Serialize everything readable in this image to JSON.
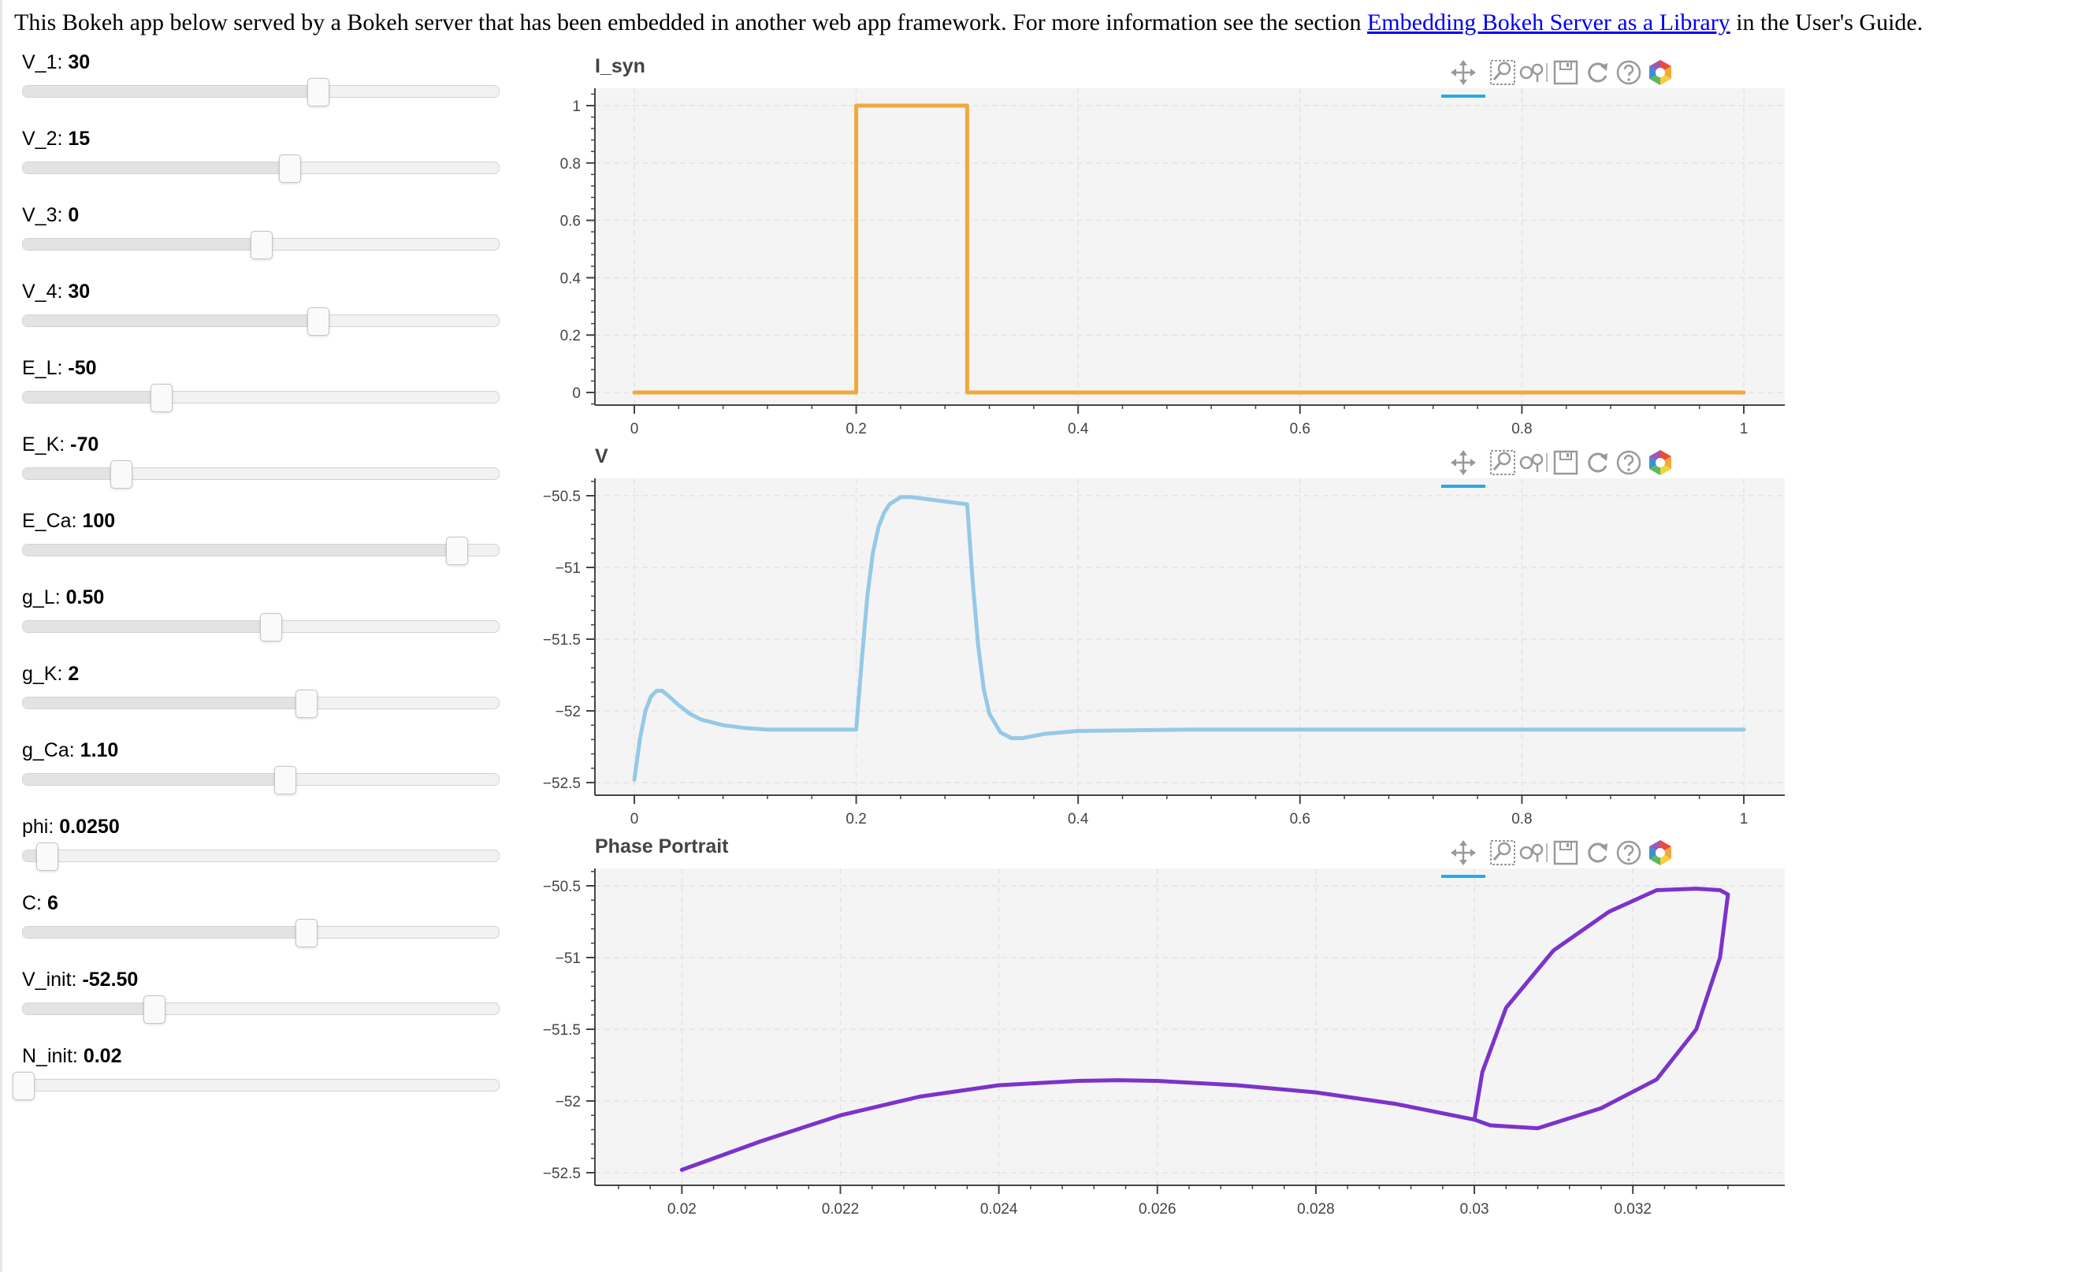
{
  "intro": {
    "before": "This Bokeh app below served by a Bokeh server that has been embedded in another web app framework. For more information see the section ",
    "link": "Embedding Bokeh Server as a Library",
    "after": " in the User's Guide."
  },
  "sliders": [
    {
      "name": "V_1",
      "value": "30",
      "fraction": 0.62
    },
    {
      "name": "V_2",
      "value": "15",
      "fraction": 0.56
    },
    {
      "name": "V_3",
      "value": "0",
      "fraction": 0.5
    },
    {
      "name": "V_4",
      "value": "30",
      "fraction": 0.62
    },
    {
      "name": "E_L",
      "value": "-50",
      "fraction": 0.29
    },
    {
      "name": "E_K",
      "value": "-70",
      "fraction": 0.205
    },
    {
      "name": "E_Ca",
      "value": "100",
      "fraction": 0.91
    },
    {
      "name": "g_L",
      "value": "0.50",
      "fraction": 0.52
    },
    {
      "name": "g_K",
      "value": "2",
      "fraction": 0.595
    },
    {
      "name": "g_Ca",
      "value": "1.10",
      "fraction": 0.55
    },
    {
      "name": "phi",
      "value": "0.0250",
      "fraction": 0.05
    },
    {
      "name": "C",
      "value": "6",
      "fraction": 0.595
    },
    {
      "name": "V_init",
      "value": "-52.50",
      "fraction": 0.275
    },
    {
      "name": "N_init",
      "value": "0.02",
      "fraction": 0.0
    }
  ],
  "toolbar": {
    "tools": [
      "pan-icon",
      "box-zoom-icon",
      "wheel-zoom-icon",
      "save-icon",
      "reset-icon",
      "help-icon",
      "bokeh-logo-icon"
    ]
  },
  "colors": {
    "isyn": "#f0a93c",
    "v": "#95c9e6",
    "phase": "#7b33c9",
    "plot_bg": "#f4f4f4",
    "active_tool": "#26aae1"
  },
  "chart_data": [
    {
      "type": "line",
      "title": "I_syn",
      "xlim": [
        0,
        1
      ],
      "ylim": [
        0,
        1
      ],
      "xticks": [
        "0",
        "0.2",
        "0.4",
        "0.6",
        "0.8",
        "1"
      ],
      "yticks": [
        "0",
        "0.2",
        "0.4",
        "0.6",
        "0.8",
        "1"
      ],
      "series": [
        {
          "x": [
            0,
            0.2,
            0.2,
            0.3,
            0.3,
            1
          ],
          "y": [
            0,
            0,
            1,
            1,
            0,
            0
          ]
        }
      ]
    },
    {
      "type": "line",
      "title": "V",
      "xlim": [
        0,
        1
      ],
      "ylim": [
        -52.5,
        -50.5
      ],
      "xticks": [
        "0",
        "0.2",
        "0.4",
        "0.6",
        "0.8",
        "1"
      ],
      "yticks": [
        "−52.5",
        "−52",
        "−51.5",
        "−51",
        "−50.5"
      ],
      "series": [
        {
          "x": [
            0,
            0.005,
            0.01,
            0.015,
            0.02,
            0.025,
            0.03,
            0.04,
            0.05,
            0.06,
            0.08,
            0.1,
            0.12,
            0.15,
            0.2,
            0.2,
            0.205,
            0.21,
            0.215,
            0.22,
            0.225,
            0.23,
            0.24,
            0.25,
            0.26,
            0.28,
            0.3,
            0.3,
            0.305,
            0.31,
            0.315,
            0.32,
            0.33,
            0.34,
            0.35,
            0.37,
            0.4,
            0.5,
            0.6,
            0.8,
            1.0
          ],
          "y": [
            -52.48,
            -52.2,
            -52.0,
            -51.9,
            -51.86,
            -51.86,
            -51.89,
            -51.96,
            -52.02,
            -52.06,
            -52.1,
            -52.12,
            -52.13,
            -52.13,
            -52.13,
            -52.13,
            -51.65,
            -51.2,
            -50.9,
            -50.72,
            -50.62,
            -50.56,
            -50.51,
            -50.51,
            -50.52,
            -50.54,
            -50.56,
            -50.56,
            -51.1,
            -51.55,
            -51.85,
            -52.02,
            -52.15,
            -52.19,
            -52.19,
            -52.16,
            -52.14,
            -52.13,
            -52.13,
            -52.13,
            -52.13
          ]
        }
      ]
    },
    {
      "type": "line",
      "title": "Phase Portrait",
      "xlim": [
        0.0194,
        0.0334
      ],
      "ylim": [
        -52.5,
        -50.5
      ],
      "xticks": [
        "0.02",
        "0.022",
        "0.024",
        "0.026",
        "0.028",
        "0.03",
        "0.032"
      ],
      "yticks": [
        "−52.5",
        "−52",
        "−51.5",
        "−51",
        "−50.5"
      ],
      "series": [
        {
          "x": [
            0.02,
            0.021,
            0.022,
            0.023,
            0.024,
            0.025,
            0.0255,
            0.026,
            0.027,
            0.028,
            0.029,
            0.03,
            0.03,
            0.0301,
            0.0304,
            0.031,
            0.0317,
            0.0323,
            0.0328,
            0.0331,
            0.0332,
            0.0332,
            0.0331,
            0.0328,
            0.0323,
            0.0316,
            0.0308,
            0.0302,
            0.03
          ],
          "y": [
            -52.48,
            -52.28,
            -52.1,
            -51.97,
            -51.89,
            -51.86,
            -51.855,
            -51.86,
            -51.89,
            -51.94,
            -52.02,
            -52.13,
            -52.13,
            -51.8,
            -51.35,
            -50.95,
            -50.68,
            -50.53,
            -50.52,
            -50.53,
            -50.56,
            -50.56,
            -51.0,
            -51.5,
            -51.85,
            -52.05,
            -52.19,
            -52.17,
            -52.13
          ]
        }
      ]
    }
  ]
}
